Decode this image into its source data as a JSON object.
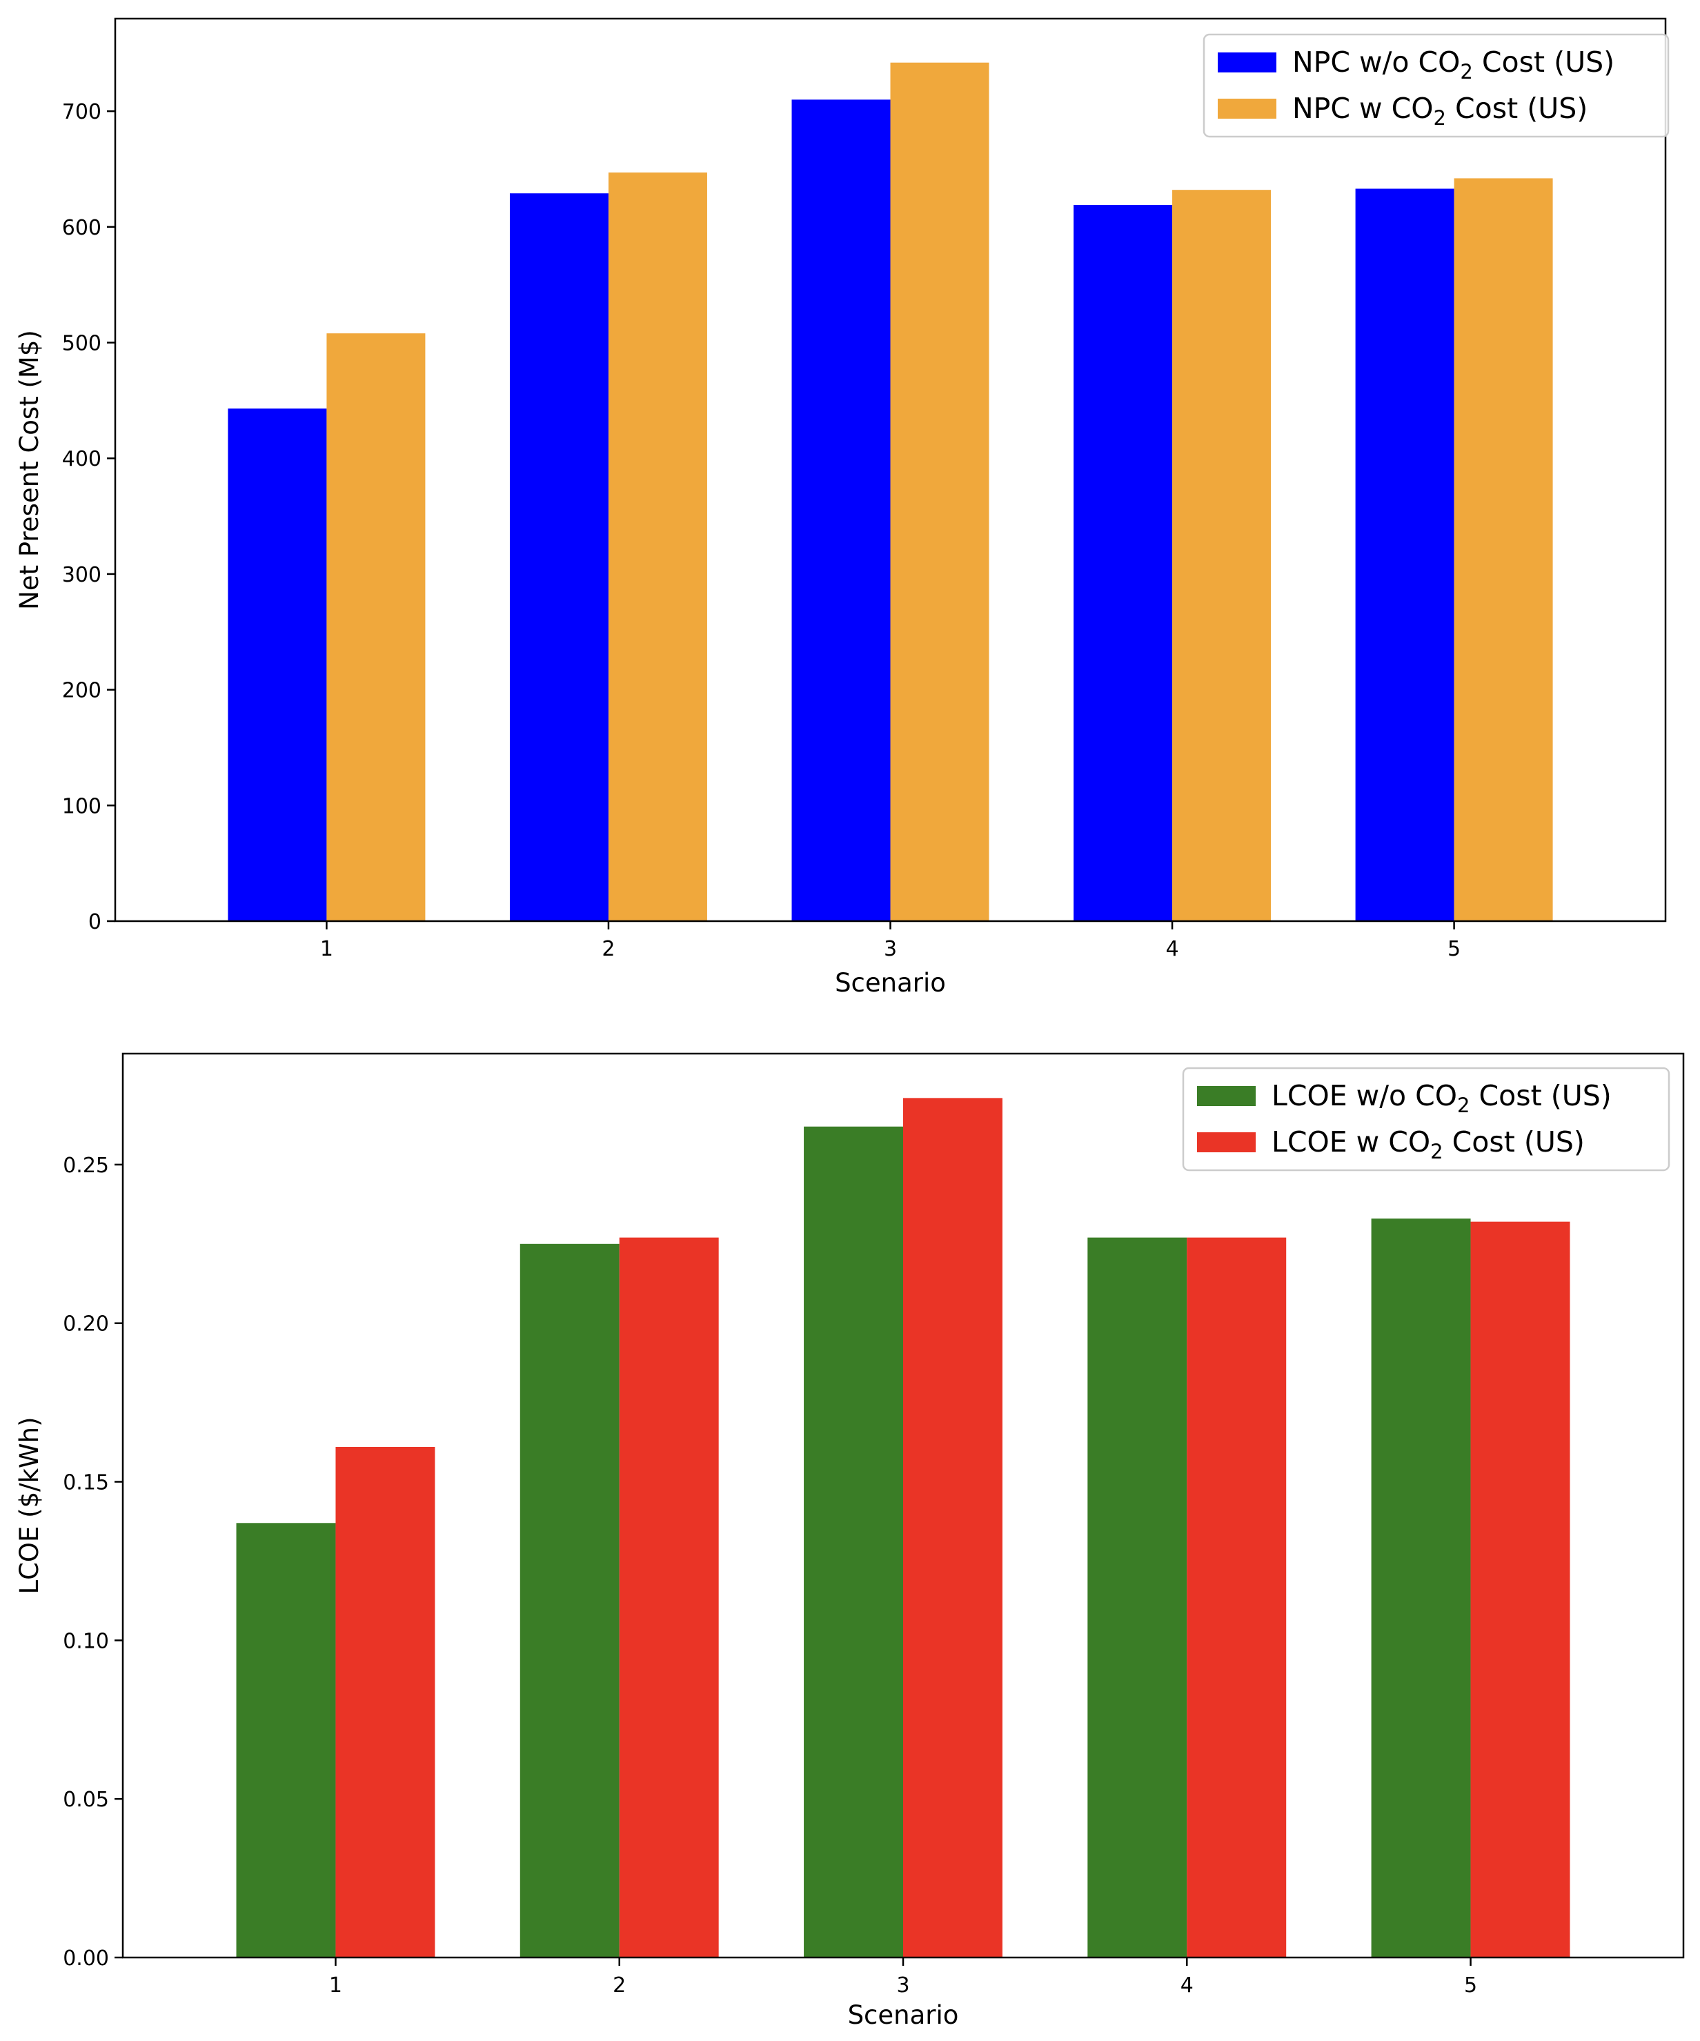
{
  "chart_data": [
    {
      "type": "bar",
      "title": "",
      "xlabel": "Scenario",
      "ylabel": "Net Present Cost (M$)",
      "categories": [
        "1",
        "2",
        "3",
        "4",
        "5"
      ],
      "ylim": [
        0,
        780
      ],
      "yticks": [
        0,
        100,
        200,
        300,
        400,
        500,
        600,
        700
      ],
      "ytick_labels": [
        "0",
        "100",
        "200",
        "300",
        "400",
        "500",
        "600",
        "700"
      ],
      "legend_position": "top-right",
      "series": [
        {
          "name": "NPC w/o CO2 Cost (US)",
          "legend_prefix": "NPC w/o CO",
          "legend_sub": "2",
          "legend_suffix": " Cost (US)",
          "color": "#0000ff",
          "values": [
            443,
            629,
            710,
            619,
            633
          ]
        },
        {
          "name": "NPC w CO2 Cost (US)",
          "legend_prefix": "NPC w CO",
          "legend_sub": "2",
          "legend_suffix": " Cost (US)",
          "color": "#f0a83c",
          "values": [
            508,
            647,
            742,
            632,
            642
          ]
        }
      ]
    },
    {
      "type": "bar",
      "title": "",
      "xlabel": "Scenario",
      "ylabel": "LCOE ($/kWh)",
      "categories": [
        "1",
        "2",
        "3",
        "4",
        "5"
      ],
      "ylim": [
        0,
        0.285
      ],
      "yticks": [
        0,
        0.05,
        0.1,
        0.15,
        0.2,
        0.25
      ],
      "ytick_labels": [
        "0.00",
        "0.05",
        "0.10",
        "0.15",
        "0.20",
        "0.25"
      ],
      "legend_position": "top-right",
      "series": [
        {
          "name": "LCOE w/o CO2 Cost (US)",
          "legend_prefix": "LCOE w/o CO",
          "legend_sub": "2",
          "legend_suffix": " Cost (US)",
          "color": "#3a7d26",
          "values": [
            0.137,
            0.225,
            0.262,
            0.227,
            0.233
          ]
        },
        {
          "name": "LCOE w CO2 Cost (US)",
          "legend_prefix": "LCOE w CO",
          "legend_sub": "2",
          "legend_suffix": " Cost (US)",
          "color": "#ea3426",
          "values": [
            0.161,
            0.227,
            0.271,
            0.227,
            0.232
          ]
        }
      ]
    }
  ]
}
